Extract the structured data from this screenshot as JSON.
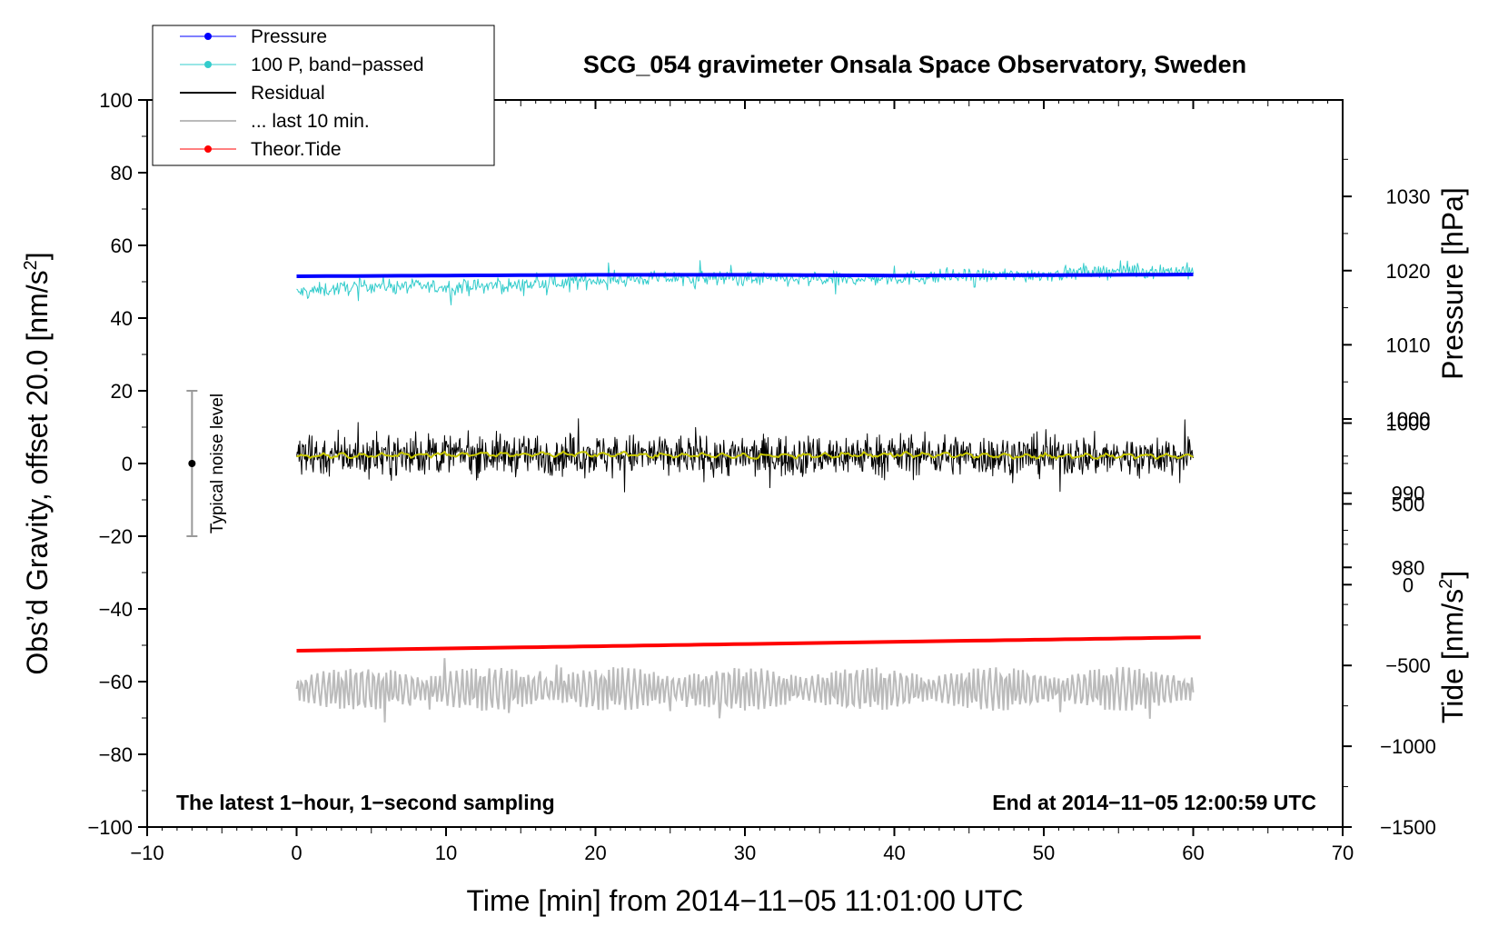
{
  "chart_data": {
    "type": "line",
    "title": "SCG_054 gravimeter Onsala Space Observatory, Sweden",
    "xlabel": "Time [min] from 2014−11−05 11:01:00 UTC",
    "ylabel_left": "Obs’d Gravity, offset 20.0 [nm/s",
    "ylabel_left_sup": "2",
    "ylabel_left_end": "]",
    "ylabel_pressure": "Pressure [hPa]",
    "ylabel_tide": "Tide [nm/s",
    "ylabel_tide_sup": "2",
    "ylabel_tide_end": "]",
    "xlim": [
      -10,
      70
    ],
    "ylim": [
      -100,
      100
    ],
    "x_ticks": [
      "−10",
      "0",
      "10",
      "20",
      "30",
      "40",
      "50",
      "60",
      "70"
    ],
    "x_tick_values": [
      -10,
      0,
      10,
      20,
      30,
      40,
      50,
      60,
      70
    ],
    "y_ticks": [
      "−100",
      "−80",
      "−60",
      "−40",
      "−20",
      "0",
      "20",
      "40",
      "60",
      "80",
      "100"
    ],
    "y_tick_values": [
      -100,
      -80,
      -60,
      -40,
      -20,
      0,
      20,
      40,
      60,
      80,
      100
    ],
    "pressure_ticks": [
      "980",
      "990",
      "1000",
      "1010",
      "1020",
      "1030"
    ],
    "pressure_tick_values": [
      980,
      990,
      1000,
      1010,
      1020,
      1030
    ],
    "pressure_range": [
      945,
      1043
    ],
    "tide_ticks": [
      "−1500",
      "−1000",
      "−500",
      "0",
      "500",
      "1000"
    ],
    "tide_tick_values": [
      -1500,
      -1000,
      -500,
      0,
      500,
      1000
    ],
    "tide_range": [
      -1500,
      3000
    ],
    "annotations": {
      "left": "The latest 1−hour, 1−second sampling",
      "right": "End at 2014−11−05 12:00:59 UTC",
      "noise_label": "Typical noise level"
    },
    "noise_bar": {
      "x": -7,
      "center": 0,
      "low": -20,
      "high": 20
    },
    "legend": [
      {
        "label": "Pressure",
        "color": "#0000ff",
        "marker": true
      },
      {
        "label": "100 P, band−passed",
        "color": "#33cccc",
        "marker": true
      },
      {
        "label": "Residual",
        "color": "#000000",
        "marker": false
      },
      {
        "label": "... last 10 min.",
        "color": "#bbbbbb",
        "marker": false
      },
      {
        "label": "Theor.Tide",
        "color": "#ff0000",
        "marker": true
      }
    ],
    "legend_position": "top-left",
    "series": [
      {
        "name": "Pressure",
        "color": "#0000ff",
        "x": [
          0,
          10,
          20,
          30,
          40,
          50,
          60
        ],
        "y": [
          51.5,
          51.7,
          51.9,
          51.9,
          51.7,
          51.8,
          52.0
        ]
      },
      {
        "name": "100 P, band−passed",
        "color": "#33cccc",
        "x": [
          0,
          5,
          10,
          15,
          20,
          25,
          30,
          35,
          40,
          45,
          50,
          55,
          60
        ],
        "y": [
          47,
          49,
          48.5,
          49,
          50.5,
          51,
          51,
          50.5,
          51,
          51.5,
          52,
          53,
          53
        ]
      },
      {
        "name": "Residual",
        "color": "#000000",
        "x": [
          0,
          10,
          20,
          30,
          40,
          50,
          60
        ],
        "y": [
          2,
          2.5,
          2.5,
          2,
          2.5,
          2,
          2
        ]
      },
      {
        "name": "... last 10 min.",
        "color": "#bbbbbb",
        "x": [
          0,
          10,
          20,
          30,
          40,
          50,
          60
        ],
        "y": [
          -62,
          -62,
          -62,
          -62,
          -62,
          -62,
          -62
        ]
      },
      {
        "name": "Theor.Tide",
        "color": "#ff0000",
        "x": [
          0,
          60.5
        ],
        "y": [
          -51.5,
          -47.8
        ]
      }
    ],
    "grid": false
  }
}
